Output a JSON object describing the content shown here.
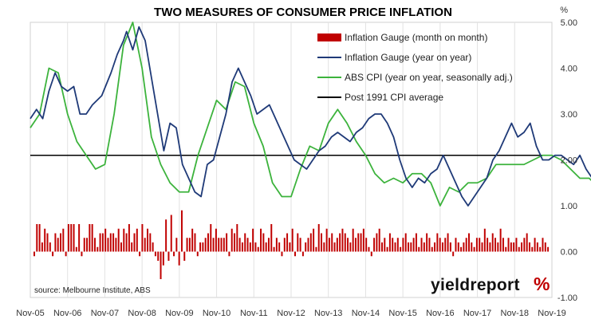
{
  "chart_data": {
    "type": "bar+line",
    "title": "TWO MEASURES OF CONSUMER PRICE INFLATION",
    "ylabel": "%",
    "ylim": [
      -1,
      5
    ],
    "yticks": [
      "5.00",
      "4.00",
      "3.00",
      "2.00",
      "1.00",
      "0.00",
      "-1.00"
    ],
    "grid": "vertical",
    "legend_position": "top-right",
    "xticks": [
      "Nov-05",
      "Nov-06",
      "Nov-07",
      "Nov-08",
      "Nov-09",
      "Nov-10",
      "Nov-11",
      "Nov-12",
      "Nov-13",
      "Nov-14",
      "Nov-15",
      "Nov-16",
      "Nov-17",
      "Nov-18",
      "Nov-19"
    ],
    "x_range": [
      "Nov-05",
      "Nov-19"
    ],
    "post1991_average": 2.1,
    "series": [
      {
        "name": "Inflation Gauge (month on month)",
        "type": "bar",
        "color": "#c00000",
        "values": [
          -0.1,
          0.6,
          0.6,
          0.2,
          0.5,
          0.4,
          0.2,
          -0.1,
          0.4,
          0.3,
          0.4,
          0.5,
          -0.1,
          0.6,
          0.6,
          0.6,
          0.1,
          0.6,
          -0.1,
          0.3,
          0.3,
          0.6,
          0.6,
          0.3,
          0.1,
          0.4,
          0.4,
          0.5,
          0.3,
          0.4,
          0.4,
          0.3,
          0.5,
          0.2,
          0.5,
          0.4,
          0.6,
          0.2,
          0.4,
          0.5,
          -0.1,
          0.6,
          0.3,
          0.5,
          0.4,
          0.2,
          -0.1,
          -0.2,
          -0.6,
          -0.3,
          0.7,
          -0.2,
          0.8,
          -0.1,
          0.3,
          -0.3,
          0.9,
          -0.2,
          0.3,
          0.3,
          0.5,
          0.4,
          -0.1,
          0.2,
          0.2,
          0.3,
          0.4,
          0.6,
          0.3,
          0.5,
          0.3,
          0.3,
          0.3,
          0.4,
          -0.1,
          0.5,
          0.4,
          0.6,
          0.3,
          0.2,
          0.4,
          0.3,
          0.2,
          0.5,
          0.2,
          0.1,
          0.5,
          0.4,
          0.2,
          0.3,
          0.6,
          0.1,
          0.3,
          0.2,
          -0.1,
          0.3,
          0.4,
          0.2,
          0.5,
          -0.1,
          0.4,
          0.3,
          -0.1,
          0.2,
          0.3,
          0.4,
          0.5,
          0.1,
          0.6,
          0.4,
          0.2,
          0.5,
          0.3,
          0.4,
          0.2,
          0.3,
          0.4,
          0.5,
          0.4,
          0.3,
          0.2,
          0.5,
          0.3,
          0.4,
          0.4,
          0.5,
          0.3,
          0.1,
          -0.1,
          0.3,
          0.4,
          0.5,
          0.2,
          0.3,
          0.1,
          0.4,
          0.3,
          0.2,
          0.3,
          0.1,
          0.3,
          0.4,
          0.2,
          0.2,
          0.3,
          0.4,
          0.1,
          0.3,
          0.2,
          0.4,
          0.3,
          0.1,
          0.2,
          0.4,
          0.3,
          0.2,
          0.3,
          0.4,
          0.2,
          -0.1,
          0.3,
          0.2,
          0.1,
          0.2,
          0.3,
          0.4,
          0.2,
          0.1,
          0.3,
          0.3,
          0.2,
          0.5,
          0.3,
          0.2,
          0.4,
          0.3,
          0.2,
          0.5,
          0.3,
          0.1,
          0.3,
          0.2,
          0.2,
          0.3,
          0.1,
          0.2,
          0.3,
          0.4,
          0.2,
          0.1,
          0.3,
          0.2,
          0.1,
          0.3,
          0.2,
          0.1
        ]
      },
      {
        "name": "Inflation Gauge (year on year)",
        "type": "line",
        "color": "#1f3a78",
        "points": [
          [
            0,
            2.9
          ],
          [
            2,
            3.1
          ],
          [
            4,
            2.9
          ],
          [
            6,
            3.5
          ],
          [
            8,
            3.9
          ],
          [
            10,
            3.6
          ],
          [
            12,
            3.5
          ],
          [
            14,
            3.6
          ],
          [
            16,
            3.0
          ],
          [
            18,
            3.0
          ],
          [
            20,
            3.2
          ],
          [
            23,
            3.4
          ],
          [
            26,
            3.9
          ],
          [
            28,
            4.3
          ],
          [
            30,
            4.6
          ],
          [
            31,
            4.8
          ],
          [
            33,
            4.4
          ],
          [
            35,
            4.9
          ],
          [
            37,
            4.6
          ],
          [
            39,
            3.8
          ],
          [
            41,
            3.0
          ],
          [
            43,
            2.2
          ],
          [
            45,
            2.8
          ],
          [
            47,
            2.7
          ],
          [
            49,
            1.9
          ],
          [
            51,
            1.6
          ],
          [
            53,
            1.3
          ],
          [
            55,
            1.2
          ],
          [
            57,
            1.9
          ],
          [
            59,
            2.0
          ],
          [
            61,
            2.5
          ],
          [
            63,
            3.0
          ],
          [
            65,
            3.7
          ],
          [
            67,
            4.0
          ],
          [
            69,
            3.7
          ],
          [
            71,
            3.4
          ],
          [
            73,
            3.0
          ],
          [
            75,
            3.1
          ],
          [
            77,
            3.2
          ],
          [
            79,
            2.9
          ],
          [
            81,
            2.6
          ],
          [
            83,
            2.3
          ],
          [
            85,
            2.0
          ],
          [
            87,
            1.9
          ],
          [
            89,
            1.8
          ],
          [
            91,
            2.0
          ],
          [
            93,
            2.2
          ],
          [
            95,
            2.3
          ],
          [
            97,
            2.5
          ],
          [
            99,
            2.6
          ],
          [
            101,
            2.5
          ],
          [
            103,
            2.4
          ],
          [
            105,
            2.6
          ],
          [
            107,
            2.7
          ],
          [
            109,
            2.9
          ],
          [
            111,
            3.0
          ],
          [
            113,
            3.0
          ],
          [
            115,
            2.8
          ],
          [
            117,
            2.5
          ],
          [
            119,
            2.0
          ],
          [
            121,
            1.6
          ],
          [
            123,
            1.4
          ],
          [
            125,
            1.6
          ],
          [
            127,
            1.5
          ],
          [
            129,
            1.7
          ],
          [
            131,
            1.8
          ],
          [
            133,
            2.1
          ],
          [
            135,
            1.8
          ],
          [
            137,
            1.5
          ],
          [
            139,
            1.2
          ],
          [
            141,
            1.0
          ],
          [
            143,
            1.2
          ],
          [
            145,
            1.4
          ],
          [
            147,
            1.6
          ],
          [
            149,
            2.0
          ],
          [
            151,
            2.2
          ],
          [
            153,
            2.5
          ],
          [
            155,
            2.8
          ],
          [
            157,
            2.5
          ],
          [
            159,
            2.6
          ],
          [
            161,
            2.8
          ],
          [
            163,
            2.3
          ],
          [
            165,
            2.0
          ],
          [
            167,
            2.0
          ],
          [
            169,
            2.1
          ],
          [
            171,
            2.1
          ],
          [
            173,
            2.0
          ],
          [
            175,
            1.9
          ],
          [
            177,
            2.1
          ],
          [
            179,
            1.8
          ],
          [
            181,
            1.6
          ],
          [
            183,
            2.1
          ],
          [
            185,
            1.7
          ],
          [
            187,
            1.8
          ],
          [
            189,
            1.6
          ],
          [
            191,
            1.8
          ],
          [
            193,
            1.5
          ],
          [
            196,
            1.5
          ]
        ]
      },
      {
        "name": "ABS CPI (year on year, seasonally adj.)",
        "type": "line",
        "color": "#3cb33c",
        "points": [
          [
            0,
            2.7
          ],
          [
            3,
            3.0
          ],
          [
            6,
            4.0
          ],
          [
            9,
            3.9
          ],
          [
            12,
            3.0
          ],
          [
            15,
            2.4
          ],
          [
            18,
            2.1
          ],
          [
            21,
            1.8
          ],
          [
            24,
            1.9
          ],
          [
            27,
            3.0
          ],
          [
            30,
            4.5
          ],
          [
            33,
            5.0
          ],
          [
            36,
            4.0
          ],
          [
            39,
            2.5
          ],
          [
            42,
            1.9
          ],
          [
            45,
            1.5
          ],
          [
            48,
            1.3
          ],
          [
            51,
            1.3
          ],
          [
            54,
            2.1
          ],
          [
            57,
            2.7
          ],
          [
            60,
            3.3
          ],
          [
            63,
            3.1
          ],
          [
            66,
            3.7
          ],
          [
            69,
            3.6
          ],
          [
            72,
            2.8
          ],
          [
            75,
            2.3
          ],
          [
            78,
            1.5
          ],
          [
            81,
            1.2
          ],
          [
            84,
            1.2
          ],
          [
            87,
            1.8
          ],
          [
            90,
            2.3
          ],
          [
            93,
            2.2
          ],
          [
            96,
            2.8
          ],
          [
            99,
            3.1
          ],
          [
            102,
            2.8
          ],
          [
            105,
            2.4
          ],
          [
            108,
            2.1
          ],
          [
            111,
            1.7
          ],
          [
            114,
            1.5
          ],
          [
            117,
            1.6
          ],
          [
            120,
            1.5
          ],
          [
            123,
            1.7
          ],
          [
            126,
            1.7
          ],
          [
            129,
            1.5
          ],
          [
            132,
            1.0
          ],
          [
            135,
            1.4
          ],
          [
            138,
            1.3
          ],
          [
            141,
            1.5
          ],
          [
            144,
            1.5
          ],
          [
            147,
            1.6
          ],
          [
            150,
            1.9
          ],
          [
            153,
            1.9
          ],
          [
            156,
            1.9
          ],
          [
            159,
            1.9
          ],
          [
            162,
            2.0
          ],
          [
            165,
            2.1
          ],
          [
            168,
            2.1
          ],
          [
            171,
            2.0
          ],
          [
            174,
            1.8
          ],
          [
            177,
            1.6
          ],
          [
            180,
            1.6
          ],
          [
            183,
            1.4
          ],
          [
            186,
            1.6
          ],
          [
            189,
            1.7
          ],
          [
            192,
            1.7
          ]
        ]
      },
      {
        "name": "Post 1991 CPI average",
        "type": "hline",
        "color": "#000000",
        "value": 2.1
      }
    ],
    "source_note": "source: Melbourne Institute, ABS",
    "brand": "yieldreport",
    "brand_mark": "%"
  }
}
